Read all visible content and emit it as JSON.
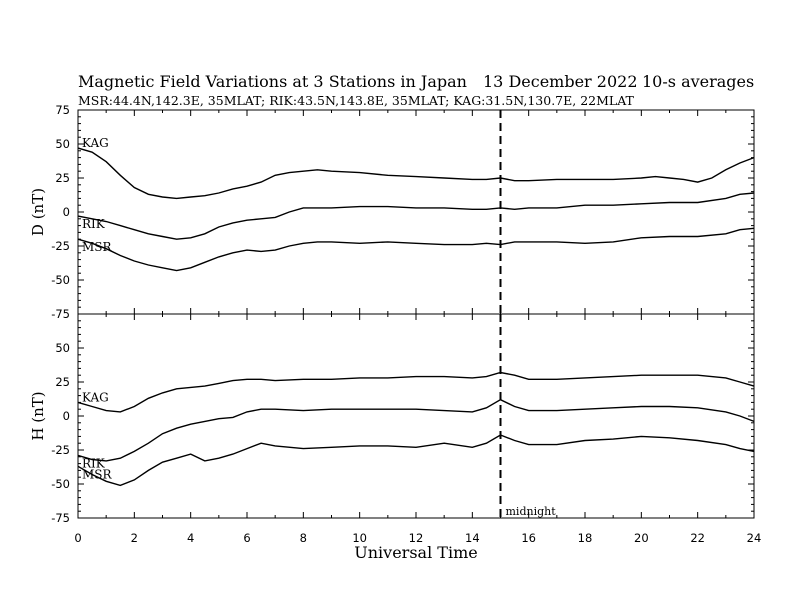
{
  "header": {
    "title": "Magnetic Field Variations at 3 Stations in Japan",
    "date": "13 December 2022",
    "averaging": "10-s averages",
    "stations": "MSR:44.4N,142.3E, 35MLAT;  RIK:43.5N,143.8E, 35MLAT;  KAG:31.5N,130.7E, 22MLAT"
  },
  "chart_data": [
    {
      "type": "line",
      "panel": "D",
      "ylabel": "D (nT)",
      "ylim": [
        -75,
        75
      ],
      "yticks": [
        "75",
        "50",
        "25",
        "0",
        "-25",
        "-50",
        "-75"
      ],
      "xlim": [
        0,
        24
      ],
      "series": [
        {
          "name": "KAG",
          "x": [
            0,
            0.5,
            1,
            1.5,
            2,
            2.5,
            3,
            3.5,
            4,
            4.5,
            5,
            5.5,
            6,
            6.5,
            7,
            7.5,
            8,
            8.5,
            9,
            10,
            11,
            12,
            13,
            14,
            14.5,
            15,
            15.5,
            16,
            17,
            18,
            19,
            20,
            20.5,
            21,
            21.5,
            22,
            22.5,
            23,
            23.5,
            24
          ],
          "y": [
            47,
            44,
            37,
            27,
            18,
            13,
            11,
            10,
            11,
            12,
            14,
            17,
            19,
            22,
            27,
            29,
            30,
            31,
            30,
            29,
            27,
            26,
            25,
            24,
            24,
            25,
            23,
            23,
            24,
            24,
            24,
            25,
            26,
            25,
            24,
            22,
            25,
            31,
            36,
            40
          ]
        },
        {
          "name": "RIK",
          "x": [
            0,
            0.5,
            1,
            1.5,
            2,
            2.5,
            3,
            3.5,
            4,
            4.5,
            5,
            5.5,
            6,
            6.5,
            7,
            7.5,
            8,
            8.5,
            9,
            10,
            11,
            12,
            13,
            14,
            14.5,
            15,
            15.5,
            16,
            17,
            18,
            19,
            20,
            21,
            22,
            23,
            23.5,
            24
          ],
          "y": [
            -3,
            -5,
            -7,
            -10,
            -13,
            -16,
            -18,
            -20,
            -19,
            -16,
            -11,
            -8,
            -6,
            -5,
            -4,
            0,
            3,
            3,
            3,
            4,
            4,
            3,
            3,
            2,
            2,
            3,
            2,
            3,
            3,
            5,
            5,
            6,
            7,
            7,
            10,
            13,
            14
          ]
        },
        {
          "name": "MSR",
          "x": [
            0,
            0.5,
            1,
            1.5,
            2,
            2.5,
            3,
            3.5,
            4,
            4.5,
            5,
            5.5,
            6,
            6.5,
            7,
            7.5,
            8,
            8.5,
            9,
            10,
            11,
            12,
            13,
            14,
            14.5,
            15,
            15.5,
            16,
            17,
            18,
            19,
            20,
            21,
            22,
            23,
            23.5,
            24
          ],
          "y": [
            -20,
            -23,
            -27,
            -32,
            -36,
            -39,
            -41,
            -43,
            -41,
            -37,
            -33,
            -30,
            -28,
            -29,
            -28,
            -25,
            -23,
            -22,
            -22,
            -23,
            -22,
            -23,
            -24,
            -24,
            -23,
            -24,
            -22,
            -22,
            -22,
            -23,
            -22,
            -19,
            -18,
            -18,
            -16,
            -13,
            -12
          ]
        }
      ]
    },
    {
      "type": "line",
      "panel": "H",
      "ylabel": "H (nT)",
      "xlabel": "Universal Time",
      "ylim": [
        -75,
        75
      ],
      "yticks": [
        "75",
        "50",
        "25",
        "0",
        "-25",
        "-50",
        "-75"
      ],
      "xlim": [
        0,
        24
      ],
      "xticks": [
        "0",
        "2",
        "4",
        "6",
        "8",
        "10",
        "12",
        "14",
        "16",
        "18",
        "20",
        "22",
        "24"
      ],
      "series": [
        {
          "name": "KAG",
          "x": [
            0,
            0.5,
            1,
            1.5,
            2,
            2.5,
            3,
            3.5,
            4,
            4.5,
            5,
            5.5,
            6,
            6.5,
            7,
            8,
            9,
            10,
            11,
            12,
            13,
            14,
            14.5,
            15,
            15.5,
            16,
            17,
            18,
            19,
            20,
            21,
            22,
            23,
            23.5,
            24
          ],
          "y": [
            10,
            7,
            4,
            3,
            7,
            13,
            17,
            20,
            21,
            22,
            24,
            26,
            27,
            27,
            26,
            27,
            27,
            28,
            28,
            29,
            29,
            28,
            29,
            32,
            30,
            27,
            27,
            28,
            29,
            30,
            30,
            30,
            28,
            25,
            22
          ]
        },
        {
          "name": "RIK",
          "x": [
            0,
            0.5,
            1,
            1.5,
            2,
            2.5,
            3,
            3.5,
            4,
            4.5,
            5,
            5.5,
            6,
            6.5,
            7,
            8,
            9,
            10,
            11,
            12,
            13,
            14,
            14.5,
            15,
            15.5,
            16,
            17,
            18,
            19,
            20,
            21,
            22,
            23,
            23.5,
            24
          ],
          "y": [
            -29,
            -32,
            -33,
            -31,
            -26,
            -20,
            -13,
            -9,
            -6,
            -4,
            -2,
            -1,
            3,
            5,
            5,
            4,
            5,
            5,
            5,
            5,
            4,
            3,
            6,
            12,
            7,
            4,
            4,
            5,
            6,
            7,
            7,
            6,
            3,
            0,
            -4
          ]
        },
        {
          "name": "MSR",
          "x": [
            0,
            0.5,
            1,
            1.5,
            2,
            2.5,
            3,
            3.5,
            4,
            4.5,
            5,
            5.5,
            6,
            6.5,
            7,
            8,
            9,
            10,
            11,
            12,
            13,
            14,
            14.5,
            15,
            15.5,
            16,
            17,
            18,
            19,
            20,
            21,
            22,
            23,
            23.5,
            24
          ],
          "y": [
            -37,
            -43,
            -48,
            -51,
            -47,
            -40,
            -34,
            -31,
            -28,
            -33,
            -31,
            -28,
            -24,
            -20,
            -22,
            -24,
            -23,
            -22,
            -22,
            -23,
            -20,
            -23,
            -20,
            -14,
            -18,
            -21,
            -21,
            -18,
            -17,
            -15,
            -16,
            -18,
            -21,
            -24,
            -26
          ]
        }
      ]
    }
  ],
  "annotations": {
    "midnight_label": "midnight",
    "midnight_ut": 15
  }
}
